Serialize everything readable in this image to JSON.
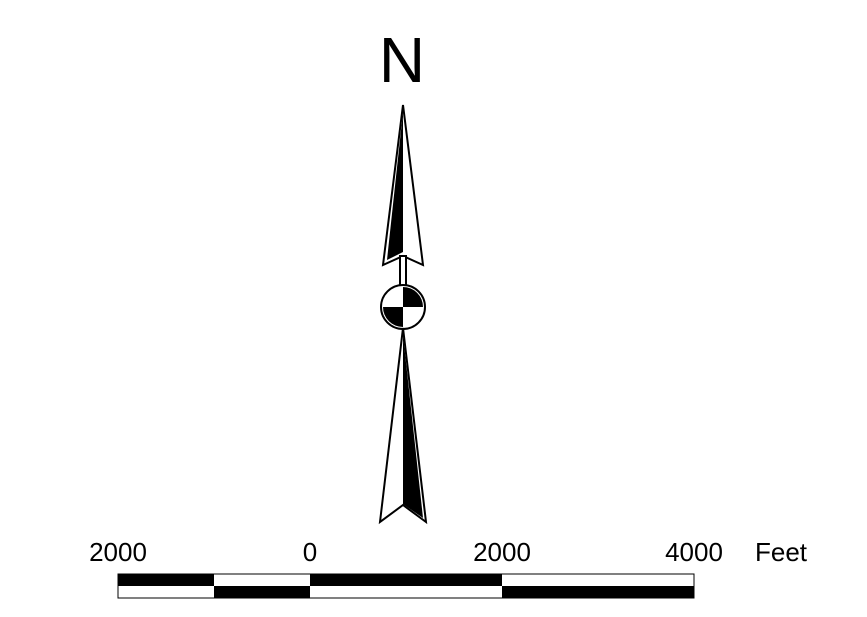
{
  "north_arrow": {
    "label": "N"
  },
  "scale_bar": {
    "labels": [
      "2000",
      "0",
      "2000",
      "4000"
    ],
    "unit": "Feet"
  }
}
